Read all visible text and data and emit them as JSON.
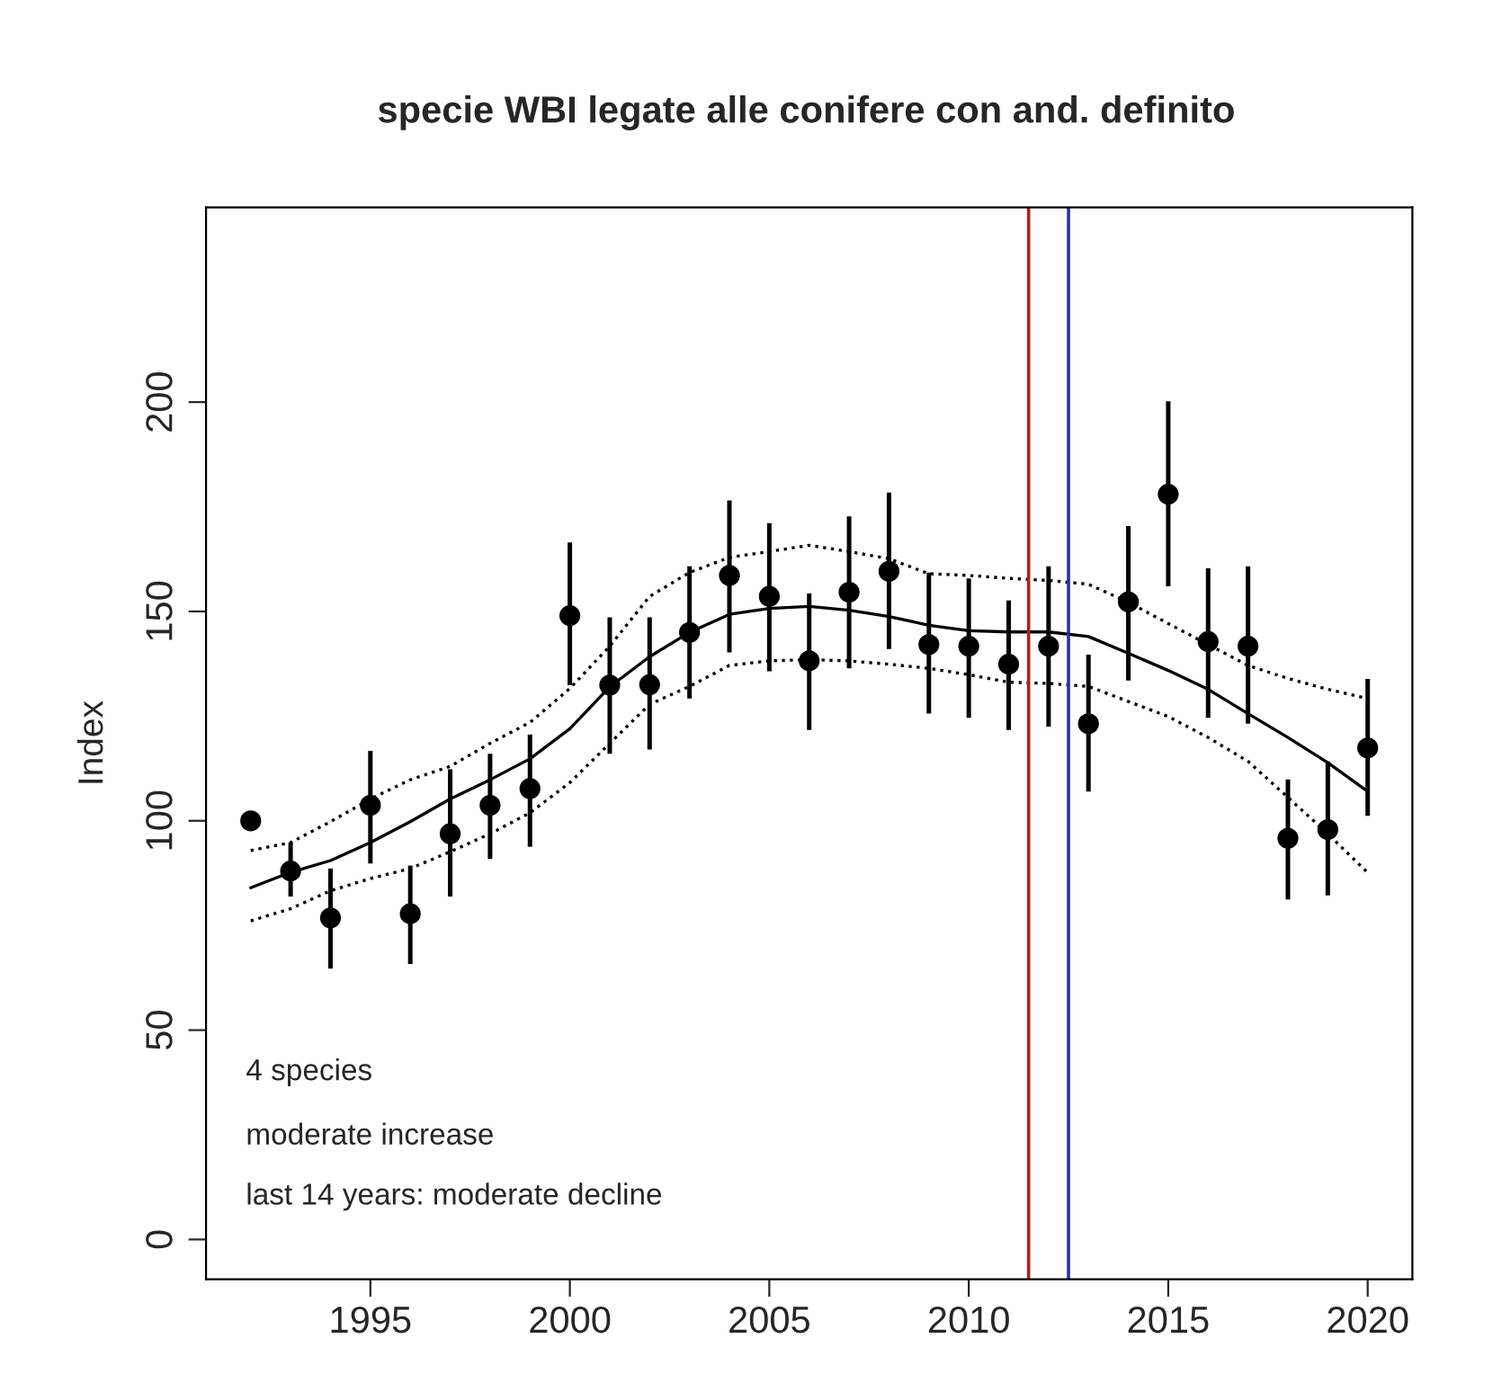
{
  "chart_data": {
    "type": "scatter",
    "title": "specie WBI legate alle conifere con and. definito",
    "ylabel": "Index",
    "x": [
      1992,
      1993,
      1994,
      1995,
      1996,
      1997,
      1998,
      1999,
      2000,
      2001,
      2002,
      2003,
      2004,
      2005,
      2006,
      2007,
      2008,
      2009,
      2010,
      2011,
      2012,
      2013,
      2014,
      2015,
      2016,
      2017,
      2018,
      2019,
      2020
    ],
    "series": [
      {
        "color": "#000000",
        "marker": "circle",
        "values": [
          100,
          88,
          76.8,
          103.7,
          77.8,
          96.9,
          103.7,
          107.7,
          149,
          132.4,
          132.5,
          145,
          158.6,
          153.6,
          138.2,
          154.6,
          159.6,
          142.1,
          141.7,
          137.4,
          141.7,
          123.2,
          152.3,
          178,
          142.8,
          141.7,
          95.8,
          97.9,
          117.4
        ],
        "errors": [
          null,
          [
            81.9,
            94.8
          ],
          [
            64.7,
            88.6
          ],
          [
            89.8,
            116.7
          ],
          [
            65.8,
            89.3
          ],
          [
            81.9,
            112.3
          ],
          [
            90.9,
            116
          ],
          [
            93.8,
            120.6
          ],
          [
            132.4,
            166.5
          ],
          [
            116,
            148.6
          ],
          [
            117,
            148.6
          ],
          [
            129.2,
            160.8
          ],
          [
            140.2,
            176.5
          ],
          [
            135.7,
            171.1
          ],
          [
            121.7,
            154.3
          ],
          [
            136.4,
            172.7
          ],
          [
            141,
            178.4
          ],
          [
            125.6,
            159.3
          ],
          [
            124.6,
            157.9
          ],
          [
            121.7,
            152.6
          ],
          [
            122.5,
            160.8
          ],
          [
            107,
            139.7
          ],
          [
            133.5,
            170.4
          ],
          [
            156,
            200.2
          ],
          [
            124.6,
            160.3
          ],
          [
            123.2,
            160.8
          ],
          [
            81.2,
            109.9
          ],
          [
            82.2,
            114.2
          ],
          [
            101.2,
            133.9
          ]
        ]
      },
      {
        "type": "line",
        "color": "#000000",
        "line_style": "solid",
        "values": [
          84,
          87.7,
          90.5,
          94.8,
          99.8,
          105.2,
          109.8,
          114.8,
          122,
          132,
          139.2,
          145,
          149.3,
          150.7,
          151.2,
          150.3,
          148.8,
          146.7,
          145.4,
          145.1,
          145.1,
          144,
          140,
          135.9,
          131.4,
          125.6,
          119.9,
          113.9,
          107
        ]
      },
      {
        "type": "line",
        "color": "#000000",
        "line_style": "dotted",
        "values": [
          92.9,
          94.8,
          99.8,
          105.2,
          109.8,
          113,
          118.5,
          123.5,
          131.6,
          141.7,
          153.6,
          159.3,
          162.9,
          164.3,
          165.8,
          164.3,
          162.6,
          159,
          158.6,
          157.9,
          157.4,
          156.5,
          152.2,
          147.1,
          142.1,
          137.1,
          134,
          131.4,
          129.2
        ]
      },
      {
        "type": "line",
        "color": "#000000",
        "line_style": "dotted",
        "values": [
          76.1,
          79,
          83.3,
          86.2,
          88.6,
          92.6,
          96.9,
          101.9,
          109.1,
          118.5,
          127.8,
          132.1,
          137.1,
          138.2,
          138.5,
          138.2,
          137.4,
          136.4,
          134.9,
          133.1,
          132.8,
          132.1,
          128.5,
          124.9,
          119.9,
          114.2,
          105.6,
          96.9,
          87.6
        ]
      }
    ],
    "xlim": [
      1990.88,
      2021.12
    ],
    "xticks": [
      1995,
      2000,
      2005,
      2010,
      2015,
      2020
    ],
    "ylim": [
      -9.5,
      246.5
    ],
    "yticks": [
      0,
      50,
      100,
      150,
      200
    ],
    "ref_lines": [
      {
        "axis": "x",
        "value": 2011.5,
        "color": "#b02020"
      },
      {
        "axis": "x",
        "value": 2012.5,
        "color": "#3030a0"
      }
    ],
    "annotations": [
      "4 species",
      "moderate increase",
      "last 14 years: moderate decline"
    ],
    "grid": false,
    "legend": false
  }
}
